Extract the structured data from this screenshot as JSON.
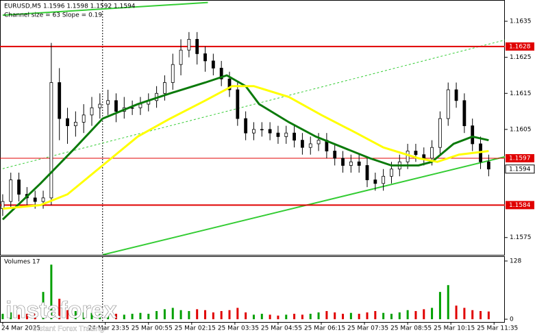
{
  "chart_data": [
    {
      "type": "candlestick",
      "title": "EURUSD,M5 1.1596 1.1598 1.1592 1.1594",
      "subtitle": "Channel size = 63 Slope = 0.19",
      "xlim": [
        -1,
        186
      ],
      "ylim": [
        1.15702,
        1.16409
      ],
      "yticks": [
        1.1635,
        1.1625,
        1.1615,
        1.1605,
        1.1575
      ],
      "x": [
        0,
        3,
        6,
        9,
        12,
        15,
        18,
        21,
        24,
        27,
        30,
        33,
        36,
        39,
        42,
        45,
        48,
        51,
        54,
        57,
        60,
        63,
        66,
        69,
        72,
        75,
        78,
        81,
        84,
        87,
        90,
        93,
        96,
        99,
        102,
        105,
        108,
        111,
        114,
        117,
        120,
        123,
        126,
        129,
        132,
        135,
        138,
        141,
        144,
        147,
        150,
        153,
        156,
        159,
        162,
        165,
        168,
        171,
        174,
        177,
        180
      ],
      "open": [
        1.1583,
        1.1585,
        1.1591,
        1.1587,
        1.1586,
        1.1585,
        1.1586,
        1.1618,
        1.1608,
        1.1606,
        1.1607,
        1.1609,
        1.1611,
        1.1612,
        1.1613,
        1.161,
        1.1611,
        1.1611,
        1.1612,
        1.1613,
        1.1615,
        1.1618,
        1.1623,
        1.1627,
        1.163,
        1.1626,
        1.1624,
        1.1622,
        1.1619,
        1.1616,
        1.1608,
        1.1604,
        1.1605,
        1.1605,
        1.1604,
        1.1603,
        1.1604,
        1.1602,
        1.16,
        1.1601,
        1.1602,
        1.1599,
        1.1597,
        1.1595,
        1.1596,
        1.1595,
        1.1591,
        1.159,
        1.1592,
        1.1594,
        1.1596,
        1.1599,
        1.1598,
        1.1597,
        1.16,
        1.1608,
        1.1616,
        1.1613,
        1.1606,
        1.1601,
        1.1596
      ],
      "high": [
        1.1587,
        1.1593,
        1.1593,
        1.1589,
        1.1588,
        1.1588,
        1.1629,
        1.1622,
        1.1611,
        1.161,
        1.1612,
        1.1614,
        1.1615,
        1.1616,
        1.1615,
        1.1614,
        1.1613,
        1.1614,
        1.1615,
        1.1617,
        1.162,
        1.1626,
        1.163,
        1.1632,
        1.1632,
        1.1628,
        1.1626,
        1.1624,
        1.1621,
        1.1618,
        1.161,
        1.1607,
        1.1607,
        1.1607,
        1.1606,
        1.1606,
        1.1606,
        1.1604,
        1.1603,
        1.1604,
        1.1604,
        1.1601,
        1.1599,
        1.1598,
        1.1598,
        1.1597,
        1.1593,
        1.1594,
        1.1596,
        1.1598,
        1.1601,
        1.1601,
        1.16,
        1.1602,
        1.161,
        1.1618,
        1.1618,
        1.1615,
        1.1608,
        1.1603,
        1.1598
      ],
      "low": [
        1.1581,
        1.1583,
        1.1585,
        1.1584,
        1.1583,
        1.1583,
        1.1584,
        1.1602,
        1.1601,
        1.1603,
        1.1604,
        1.1606,
        1.1608,
        1.1609,
        1.1607,
        1.1608,
        1.1609,
        1.1609,
        1.161,
        1.1611,
        1.1613,
        1.1616,
        1.162,
        1.1625,
        1.1623,
        1.1621,
        1.162,
        1.1617,
        1.1614,
        1.1606,
        1.1602,
        1.1602,
        1.1603,
        1.1602,
        1.1601,
        1.1601,
        1.16,
        1.1598,
        1.1598,
        1.1599,
        1.1597,
        1.1595,
        1.1593,
        1.1593,
        1.1593,
        1.1589,
        1.1588,
        1.1588,
        1.159,
        1.1592,
        1.1594,
        1.1596,
        1.1595,
        1.1595,
        1.1598,
        1.1606,
        1.1611,
        1.1604,
        1.1599,
        1.1594,
        1.1592
      ],
      "close": [
        1.1585,
        1.1591,
        1.1587,
        1.1586,
        1.1585,
        1.1586,
        1.1618,
        1.1608,
        1.1606,
        1.1607,
        1.1609,
        1.1611,
        1.1612,
        1.1613,
        1.161,
        1.1611,
        1.1611,
        1.1612,
        1.1613,
        1.1615,
        1.1618,
        1.1623,
        1.1627,
        1.163,
        1.1626,
        1.1624,
        1.1622,
        1.1619,
        1.1616,
        1.1608,
        1.1604,
        1.1605,
        1.1605,
        1.1604,
        1.1603,
        1.1604,
        1.1602,
        1.16,
        1.1601,
        1.1602,
        1.1599,
        1.1597,
        1.1595,
        1.1596,
        1.1595,
        1.1591,
        1.159,
        1.1592,
        1.1594,
        1.1596,
        1.1599,
        1.1598,
        1.1597,
        1.16,
        1.1608,
        1.1616,
        1.1613,
        1.1606,
        1.1601,
        1.1596,
        1.1594
      ],
      "candle_color": "#000000",
      "moving_averages": [
        {
          "color": "#0a7a0a",
          "width": 3,
          "x": [
            0,
            14,
            27,
            37,
            50,
            62,
            75,
            83,
            90,
            95,
            106,
            116,
            126,
            136,
            144,
            154,
            159,
            167,
            174,
            180
          ],
          "values": [
            1.158,
            1.159,
            1.16,
            1.1608,
            1.1612,
            1.1615,
            1.1618,
            1.162,
            1.1617,
            1.1612,
            1.1607,
            1.1603,
            1.16,
            1.1597,
            1.1595,
            1.1595,
            1.1596,
            1.1601,
            1.1603,
            1.1602
          ]
        },
        {
          "color": "#ffff00",
          "width": 3,
          "x": [
            0,
            14,
            24,
            37,
            50,
            62,
            75,
            85,
            93,
            106,
            118,
            131,
            141,
            154,
            161,
            169,
            180
          ],
          "values": [
            1.1583,
            1.1584,
            1.1587,
            1.1595,
            1.1603,
            1.1608,
            1.1613,
            1.1617,
            1.1617,
            1.1614,
            1.1609,
            1.1604,
            1.16,
            1.1597,
            1.1596,
            1.1598,
            1.1599
          ]
        }
      ],
      "trend_lines": [
        {
          "color": "#33cc33",
          "style": "solid",
          "x": [
            0,
            76
          ],
          "values": [
            1.16367,
            1.16402
          ]
        },
        {
          "color": "#33cc33",
          "style": "solid",
          "x": [
            37,
            186
          ],
          "values": [
            1.15702,
            1.15974
          ]
        },
        {
          "color": "#33cc33",
          "style": "dotted",
          "x": [
            0,
            186
          ],
          "values": [
            1.15941,
            1.16298
          ]
        }
      ],
      "levels": [
        {
          "value": 1.1628,
          "color": "#e00000",
          "width": 2
        },
        {
          "value": 1.1584,
          "color": "#e00000",
          "width": 2
        },
        {
          "value": 1.1597,
          "color": "#e00000",
          "width": 1
        }
      ],
      "current_price": 1.1594,
      "vertical_line": {
        "x": 37
      }
    },
    {
      "type": "bar",
      "title": "Volumes 17",
      "xlim": [
        -1,
        186
      ],
      "ylim": [
        0,
        137
      ],
      "yticks": [
        128,
        0
      ],
      "colors": {
        "up": "#00a000",
        "down": "#e00000"
      },
      "values": [
        12,
        15,
        10,
        12,
        14,
        60,
        120,
        45,
        20,
        18,
        15,
        14,
        12,
        10,
        12,
        10,
        12,
        14,
        12,
        18,
        22,
        25,
        20,
        18,
        22,
        20,
        15,
        18,
        20,
        25,
        15,
        10,
        12,
        10,
        8,
        10,
        12,
        10,
        12,
        15,
        18,
        15,
        12,
        14,
        12,
        15,
        18,
        14,
        12,
        15,
        20,
        18,
        22,
        25,
        60,
        75,
        30,
        25,
        20,
        18,
        17
      ],
      "xticks": [
        {
          "value": 0,
          "label": "24 Mar 2025"
        },
        {
          "value": 38,
          "label": "24 Mar 23:35"
        },
        {
          "value": 54,
          "label": "25 Mar 00:55"
        },
        {
          "value": 70,
          "label": "25 Mar 02:15"
        },
        {
          "value": 86,
          "label": "25 Mar 03:35"
        },
        {
          "value": 102,
          "label": "25 Mar 04:55"
        },
        {
          "value": 118,
          "label": "25 Mar 06:15"
        },
        {
          "value": 134,
          "label": "25 Mar 07:35"
        },
        {
          "value": 150,
          "label": "25 Mar 08:55"
        },
        {
          "value": 166,
          "label": "25 Mar 10:15"
        },
        {
          "value": 182,
          "label": "25 Mar 11:35"
        }
      ]
    }
  ],
  "watermark": {
    "brand": "instaforex",
    "tagline": "Instant Forex Trading"
  }
}
